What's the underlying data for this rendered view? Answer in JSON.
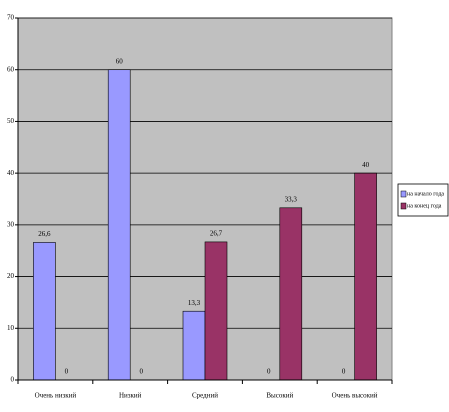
{
  "chart_data": {
    "type": "bar",
    "categories": [
      "Очень низкий",
      "Низкий",
      "Средний",
      "Высокий",
      "Очень высокий"
    ],
    "series": [
      {
        "name": "на начало года",
        "color": "#9999ff",
        "values": [
          26.6,
          60,
          13.3,
          0,
          0
        ],
        "value_labels": [
          "26,6",
          "60",
          "13,3",
          "0",
          "0"
        ]
      },
      {
        "name": "на конец года",
        "color": "#993366",
        "values": [
          0,
          0,
          26.7,
          33.3,
          40
        ],
        "value_labels": [
          "0",
          "0",
          "26,7",
          "33,3",
          "40"
        ]
      }
    ],
    "ylim": [
      0,
      70
    ],
    "yticks": [
      0,
      10,
      20,
      30,
      40,
      50,
      60,
      70
    ],
    "grid": true,
    "legend": "right"
  }
}
